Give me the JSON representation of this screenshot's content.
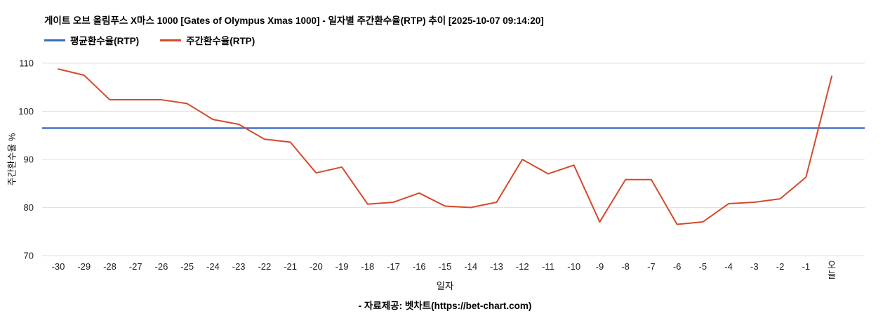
{
  "chart_data": {
    "type": "line",
    "title": "게이트 오브 올림푸스 X마스 1000 [Gates of Olympus Xmas 1000] - 일자별 주간환수율(RTP) 추이 [2025-10-07 09:14:20]",
    "xlabel": "일자",
    "ylabel": "주간환수율 %",
    "ylim": [
      70,
      110
    ],
    "ytick_step": 10,
    "grid": true,
    "legend_position": "top-left",
    "categories": [
      "-30",
      "-29",
      "-28",
      "-27",
      "-26",
      "-25",
      "-24",
      "-23",
      "-22",
      "-21",
      "-20",
      "-19",
      "-18",
      "-17",
      "-16",
      "-15",
      "-14",
      "-13",
      "-12",
      "-11",
      "-10",
      "-9",
      "-8",
      "-7",
      "-6",
      "-5",
      "-4",
      "-3",
      "-2",
      "-1",
      "오늘"
    ],
    "series": [
      {
        "name": "평균환수율(RTP)",
        "type": "constant-line",
        "value": 96.5,
        "color": "#3a6bc4"
      },
      {
        "name": "주간환수율(RTP)",
        "type": "line",
        "color": "#d6492a",
        "values": [
          108.8,
          107.5,
          102.4,
          102.4,
          102.4,
          101.6,
          98.3,
          97.3,
          94.2,
          93.6,
          87.2,
          88.4,
          80.7,
          81.1,
          83.0,
          80.3,
          80.0,
          81.1,
          90.0,
          87.0,
          88.8,
          77.0,
          85.8,
          85.8,
          76.5,
          77.0,
          80.8,
          81.1,
          81.8,
          86.3,
          107.3
        ]
      }
    ]
  },
  "footer": {
    "source": "- 자료제공: 벳차트(https://bet-chart.com)"
  }
}
